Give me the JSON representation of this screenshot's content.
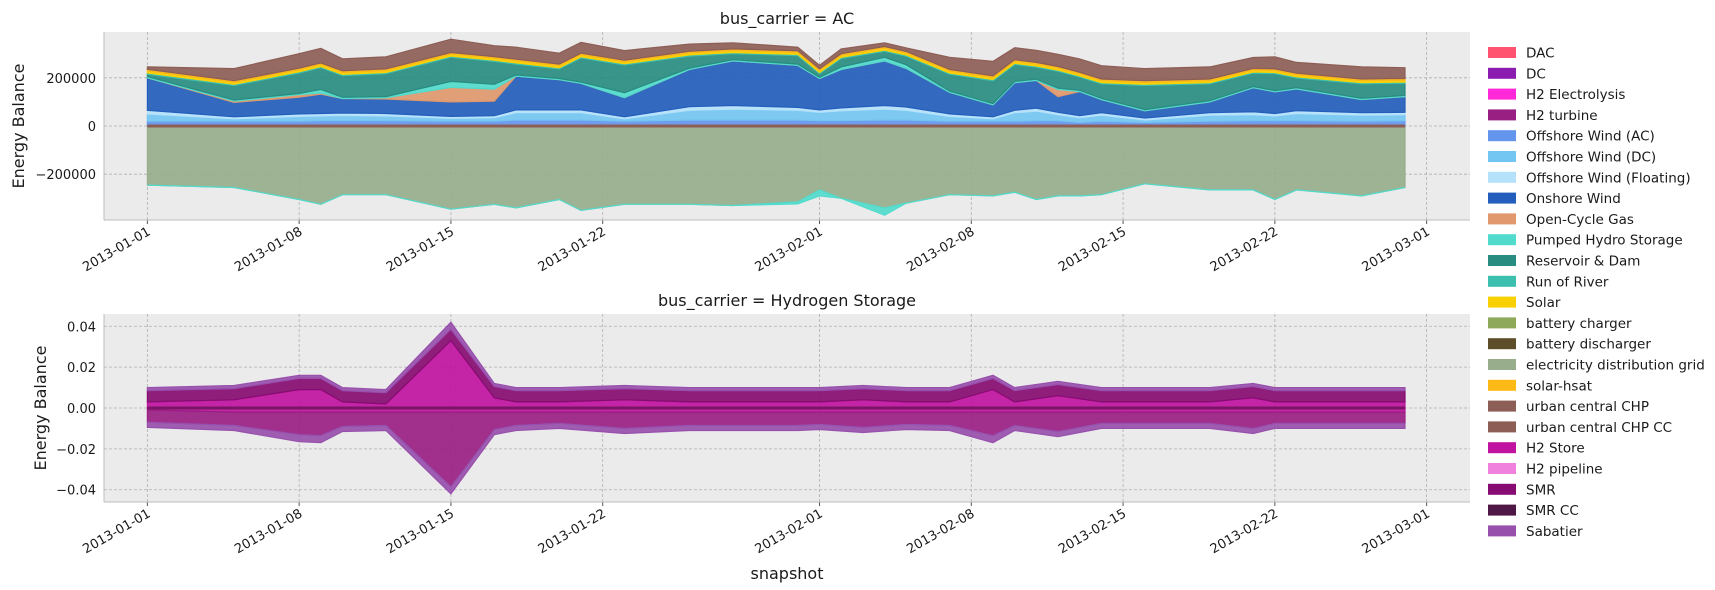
{
  "chart_data": [
    {
      "type": "area",
      "title": "bus_carrier = AC",
      "xlabel": "",
      "ylabel": "Energy Balance",
      "x": [
        "2013-01-01",
        "2013-01-05",
        "2013-01-08",
        "2013-01-09",
        "2013-01-10",
        "2013-01-12",
        "2013-01-15",
        "2013-01-17",
        "2013-01-18",
        "2013-01-20",
        "2013-01-21",
        "2013-01-23",
        "2013-01-26",
        "2013-01-28",
        "2013-01-31",
        "2013-02-01",
        "2013-02-02",
        "2013-02-04",
        "2013-02-05",
        "2013-02-07",
        "2013-02-09",
        "2013-02-10",
        "2013-02-11",
        "2013-02-12",
        "2013-02-13",
        "2013-02-14",
        "2013-02-16",
        "2013-02-19",
        "2013-02-21",
        "2013-02-22",
        "2013-02-23",
        "2013-02-26",
        "2013-02-28"
      ],
      "x_ticks": [
        "2013-01-01",
        "2013-01-08",
        "2013-01-15",
        "2013-01-22",
        "2013-02-01",
        "2013-02-08",
        "2013-02-15",
        "2013-02-22",
        "2013-03-01"
      ],
      "xlim": [
        "2012-12-30",
        "2013-03-03"
      ],
      "ylim": [
        -390000,
        390000
      ],
      "y_ticks": [
        -200000,
        0,
        200000
      ],
      "y_tick_labels": [
        "−200000",
        "0",
        "200000"
      ],
      "grid": true,
      "legend": "right-outside",
      "series": [
        {
          "name": "Offshore Wind (AC)",
          "color": "#6495ed",
          "values": [
            20000,
            20000,
            20000,
            22000,
            22000,
            22000,
            20000,
            20000,
            25000,
            25000,
            25000,
            20000,
            25000,
            25000,
            25000,
            22000,
            23000,
            25000,
            25000,
            20000,
            20000,
            20000,
            22000,
            22000,
            15000,
            20000,
            15000,
            20000,
            22000,
            22000,
            22000,
            20000,
            22000
          ]
        },
        {
          "name": "Offshore Wind (DC)",
          "color": "#74c6f2",
          "values": [
            30000,
            10000,
            20000,
            20000,
            22000,
            20000,
            12000,
            15000,
            30000,
            30000,
            30000,
            10000,
            40000,
            45000,
            40000,
            35000,
            40000,
            45000,
            40000,
            20000,
            10000,
            35000,
            40000,
            25000,
            20000,
            25000,
            10000,
            25000,
            25000,
            20000,
            30000,
            25000,
            25000
          ]
        },
        {
          "name": "Offshore Wind (Floating)",
          "color": "#b5e2fa",
          "values": [
            15000,
            8000,
            10000,
            10000,
            10000,
            10000,
            8000,
            8000,
            12000,
            12000,
            12000,
            8000,
            15000,
            15000,
            12000,
            10000,
            12000,
            15000,
            14000,
            10000,
            8000,
            10000,
            12000,
            10000,
            8000,
            10000,
            8000,
            10000,
            12000,
            10000,
            12000,
            10000,
            10000
          ]
        },
        {
          "name": "Onshore Wind",
          "color": "#235ebc",
          "values": [
            135000,
            60000,
            70000,
            80000,
            60000,
            60000,
            60000,
            60000,
            140000,
            125000,
            110000,
            80000,
            155000,
            185000,
            175000,
            130000,
            160000,
            185000,
            160000,
            90000,
            50000,
            115000,
            115000,
            65000,
            100000,
            55000,
            30000,
            45000,
            100000,
            90000,
            90000,
            55000,
            65000
          ]
        },
        {
          "name": "Open-Cycle Gas",
          "color": "#e0986c",
          "values": [
            0,
            5000,
            10000,
            5000,
            0,
            5000,
            60000,
            50000,
            0,
            0,
            0,
            0,
            0,
            0,
            0,
            0,
            0,
            0,
            0,
            0,
            0,
            0,
            0,
            30000,
            0,
            0,
            0,
            0,
            0,
            0,
            0,
            0,
            0
          ]
        },
        {
          "name": "Pumped Hydro Storage",
          "color": "#51dbcc",
          "values": [
            5000,
            5000,
            5000,
            15000,
            5000,
            5000,
            25000,
            20000,
            5000,
            5000,
            5000,
            20000,
            5000,
            5000,
            5000,
            5000,
            10000,
            15000,
            15000,
            5000,
            5000,
            5000,
            5000,
            5000,
            5000,
            5000,
            5000,
            5000,
            5000,
            5000,
            5000,
            5000,
            5000
          ]
        },
        {
          "name": "Reservoir & Dam",
          "color": "#298c81",
          "values": [
            10000,
            60000,
            85000,
            90000,
            90000,
            95000,
            100000,
            95000,
            45000,
            40000,
            100000,
            115000,
            50000,
            25000,
            35000,
            15000,
            35000,
            25000,
            35000,
            70000,
            95000,
            70000,
            50000,
            70000,
            55000,
            60000,
            100000,
            70000,
            55000,
            70000,
            40000,
            60000,
            50000
          ]
        },
        {
          "name": "Run of River",
          "color": "#3dbfb0",
          "values": [
            5000,
            5000,
            5000,
            5000,
            5000,
            5000,
            5000,
            5000,
            5000,
            5000,
            5000,
            5000,
            5000,
            5000,
            5000,
            5000,
            5000,
            5000,
            5000,
            5000,
            5000,
            5000,
            5000,
            5000,
            5000,
            5000,
            5000,
            5000,
            5000,
            5000,
            5000,
            5000,
            5000
          ]
        },
        {
          "name": "Solar",
          "color": "#f9d002",
          "values": [
            8000,
            8000,
            8000,
            8000,
            8000,
            8000,
            8000,
            8000,
            8000,
            8000,
            8000,
            8000,
            8000,
            8000,
            8000,
            8000,
            8000,
            8000,
            8000,
            8000,
            8000,
            8000,
            8000,
            8000,
            8000,
            8000,
            8000,
            8000,
            8000,
            8000,
            8000,
            8000,
            8000
          ]
        },
        {
          "name": "solar-hsat",
          "color": "#fdb915",
          "values": [
            7000,
            7000,
            7000,
            7000,
            7000,
            7000,
            7000,
            7000,
            7000,
            7000,
            7000,
            7000,
            7000,
            7000,
            7000,
            7000,
            7000,
            7000,
            7000,
            7000,
            7000,
            7000,
            7000,
            7000,
            7000,
            7000,
            7000,
            7000,
            7000,
            7000,
            7000,
            7000,
            7000
          ]
        },
        {
          "name": "urban central CHP",
          "color": "#8d5e56",
          "values": [
            10000,
            50000,
            60000,
            60000,
            50000,
            50000,
            55000,
            45000,
            50000,
            45000,
            45000,
            40000,
            30000,
            25000,
            15000,
            15000,
            20000,
            15000,
            15000,
            50000,
            60000,
            50000,
            50000,
            50000,
            55000,
            55000,
            50000,
            50000,
            45000,
            50000,
            45000,
            50000,
            45000
          ]
        }
      ],
      "negative_series": [
        {
          "name": "electricity distribution grid",
          "color": "#97ad8c",
          "values": [
            -245000,
            -255000,
            -305000,
            -325000,
            -285000,
            -285000,
            -345000,
            -325000,
            -340000,
            -305000,
            -350000,
            -325000,
            -325000,
            -330000,
            -315000,
            -265000,
            -300000,
            -340000,
            -320000,
            -285000,
            -290000,
            -275000,
            -305000,
            -290000,
            -290000,
            -285000,
            -240000,
            -265000,
            -265000,
            -305000,
            -265000,
            -290000,
            -255000
          ]
        },
        {
          "name": "Pumped Hydro Storage",
          "color": "#51dbcc",
          "values": [
            0,
            0,
            0,
            0,
            0,
            0,
            0,
            0,
            0,
            0,
            0,
            0,
            0,
            0,
            -8000,
            -25000,
            0,
            -30000,
            0,
            0,
            0,
            0,
            0,
            0,
            0,
            0,
            0,
            0,
            0,
            0,
            0,
            0,
            0
          ]
        }
      ]
    },
    {
      "type": "area",
      "title": "bus_carrier = Hydrogen Storage",
      "xlabel": "snapshot",
      "ylabel": "Energy Balance",
      "x": [
        "2013-01-01",
        "2013-01-05",
        "2013-01-08",
        "2013-01-09",
        "2013-01-10",
        "2013-01-12",
        "2013-01-15",
        "2013-01-17",
        "2013-01-18",
        "2013-01-20",
        "2013-01-23",
        "2013-01-26",
        "2013-01-28",
        "2013-01-31",
        "2013-02-01",
        "2013-02-03",
        "2013-02-05",
        "2013-02-07",
        "2013-02-09",
        "2013-02-10",
        "2013-02-12",
        "2013-02-14",
        "2013-02-19",
        "2013-02-21",
        "2013-02-22",
        "2013-02-28"
      ],
      "x_ticks": [
        "2013-01-01",
        "2013-01-08",
        "2013-01-15",
        "2013-01-22",
        "2013-02-01",
        "2013-02-08",
        "2013-02-15",
        "2013-02-22",
        "2013-03-01"
      ],
      "xlim": [
        "2012-12-30",
        "2013-03-03"
      ],
      "ylim": [
        -0.046,
        0.046
      ],
      "y_ticks": [
        -0.04,
        -0.02,
        0.0,
        0.02,
        0.04
      ],
      "y_tick_labels": [
        "−0.04",
        "−0.02",
        "0.00",
        "0.02",
        "0.04"
      ],
      "grid": true,
      "series": [
        {
          "name": "H2 Store",
          "color": "#bf13a0",
          "values": [
            0.003,
            0.004,
            0.009,
            0.009,
            0.003,
            0.002,
            0.033,
            0.005,
            0.003,
            0.003,
            0.004,
            0.003,
            0.003,
            0.003,
            0.003,
            0.004,
            0.003,
            0.003,
            0.009,
            0.003,
            0.006,
            0.003,
            0.003,
            0.005,
            0.003,
            0.003
          ]
        },
        {
          "name": "SMR",
          "color": "#870c71",
          "values": [
            0.0055,
            0.0055,
            0.0055,
            0.0055,
            0.0055,
            0.0055,
            0.0055,
            0.0055,
            0.0055,
            0.0055,
            0.0055,
            0.0055,
            0.0055,
            0.0055,
            0.0055,
            0.0055,
            0.0055,
            0.0055,
            0.0055,
            0.0055,
            0.0055,
            0.0055,
            0.0055,
            0.0055,
            0.0055,
            0.0055
          ]
        },
        {
          "name": "Sabatier",
          "color": "#9850ad",
          "values": [
            0.0015,
            0.0015,
            0.0015,
            0.0015,
            0.0015,
            0.0015,
            0.0035,
            0.0015,
            0.0015,
            0.0015,
            0.0015,
            0.0015,
            0.0015,
            0.0015,
            0.0015,
            0.0015,
            0.0015,
            0.0015,
            0.0015,
            0.0015,
            0.0015,
            0.0015,
            0.0015,
            0.0015,
            0.0015,
            0.0015
          ]
        }
      ],
      "negative_series": [
        {
          "name": "H2 Store",
          "color": "#bf13a0",
          "values": [
            -0.001,
            -0.002,
            -0.002,
            -0.002,
            -0.002,
            -0.002,
            -0.002,
            -0.002,
            -0.002,
            -0.002,
            -0.002,
            -0.002,
            -0.002,
            -0.002,
            -0.002,
            -0.002,
            -0.002,
            -0.002,
            -0.002,
            -0.002,
            -0.002,
            -0.002,
            -0.002,
            -0.002,
            -0.002,
            -0.002
          ]
        },
        {
          "name": "H2 turbine",
          "color": "#991f83",
          "values": [
            -0.006,
            -0.0065,
            -0.011,
            -0.0115,
            -0.007,
            -0.0065,
            -0.0365,
            -0.0085,
            -0.0065,
            -0.0055,
            -0.008,
            -0.0065,
            -0.0065,
            -0.0065,
            -0.006,
            -0.0075,
            -0.006,
            -0.0065,
            -0.0115,
            -0.0065,
            -0.0095,
            -0.0055,
            -0.0055,
            -0.008,
            -0.0055,
            -0.0055
          ]
        },
        {
          "name": "Sabatier",
          "color": "#9850ad",
          "values": [
            -0.0025,
            -0.0025,
            -0.0035,
            -0.0035,
            -0.0025,
            -0.0025,
            -0.0035,
            -0.0025,
            -0.0025,
            -0.0025,
            -0.0025,
            -0.0025,
            -0.0025,
            -0.0025,
            -0.0025,
            -0.0025,
            -0.0025,
            -0.0025,
            -0.0035,
            -0.0025,
            -0.0025,
            -0.0025,
            -0.0025,
            -0.0025,
            -0.0025,
            -0.0025
          ]
        }
      ]
    }
  ],
  "legend": {
    "items": [
      {
        "label": "DAC",
        "color": "#ff5270"
      },
      {
        "label": "DC",
        "color": "#8a1caf"
      },
      {
        "label": "H2 Electrolysis",
        "color": "#ff29d9"
      },
      {
        "label": "H2 turbine",
        "color": "#991f83"
      },
      {
        "label": "Offshore Wind (AC)",
        "color": "#6495ed"
      },
      {
        "label": "Offshore Wind (DC)",
        "color": "#74c6f2"
      },
      {
        "label": "Offshore Wind (Floating)",
        "color": "#b5e2fa"
      },
      {
        "label": "Onshore Wind",
        "color": "#235ebc"
      },
      {
        "label": "Open-Cycle Gas",
        "color": "#e0986c"
      },
      {
        "label": "Pumped Hydro Storage",
        "color": "#51dbcc"
      },
      {
        "label": "Reservoir & Dam",
        "color": "#298c81"
      },
      {
        "label": "Run of River",
        "color": "#3dbfb0"
      },
      {
        "label": "Solar",
        "color": "#f9d002"
      },
      {
        "label": "battery charger",
        "color": "#8ea95a"
      },
      {
        "label": "battery discharger",
        "color": "#5d4e29"
      },
      {
        "label": "electricity distribution grid",
        "color": "#97ad8c"
      },
      {
        "label": "solar-hsat",
        "color": "#fdb915"
      },
      {
        "label": "urban central CHP",
        "color": "#8d5e56"
      },
      {
        "label": "urban central CHP CC",
        "color": "#8d5e56"
      },
      {
        "label": "H2 Store",
        "color": "#bf13a0"
      },
      {
        "label": "H2 pipeline",
        "color": "#f081dc"
      },
      {
        "label": "SMR",
        "color": "#870c71"
      },
      {
        "label": "SMR CC",
        "color": "#4f1745"
      },
      {
        "label": "Sabatier",
        "color": "#9850ad"
      }
    ]
  }
}
